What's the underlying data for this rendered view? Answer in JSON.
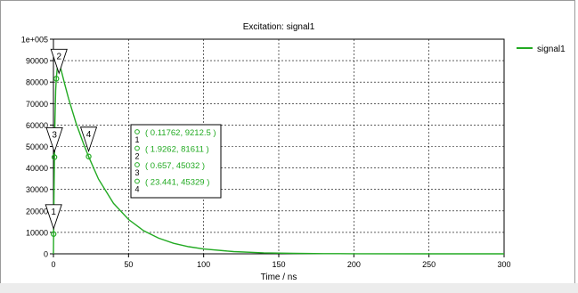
{
  "chart_data": {
    "type": "line",
    "title": "Excitation: signal1",
    "xlabel": "Time / ns",
    "ylabel": "",
    "xlim": [
      0,
      300
    ],
    "ylim": [
      0,
      100000
    ],
    "x_ticks": [
      0,
      50,
      100,
      150,
      200,
      250,
      300
    ],
    "x_tick_labels": [
      "0",
      "50",
      "100",
      "150",
      "200",
      "250",
      "300"
    ],
    "y_ticks": [
      0,
      10000,
      20000,
      30000,
      40000,
      50000,
      60000,
      70000,
      80000,
      90000,
      100000
    ],
    "y_tick_labels": [
      "0",
      "10000",
      "20000",
      "30000",
      "40000",
      "50000",
      "60000",
      "70000",
      "80000",
      "90000",
      "1e+005"
    ],
    "grid": true,
    "legend_placement": "outside-right",
    "series": [
      {
        "name": "signal1",
        "color": "#22aa22",
        "x": [
          0,
          0.1176,
          0.3,
          0.657,
          1.0,
          1.5,
          1.9262,
          3,
          5,
          7.5,
          10,
          15,
          20,
          23.441,
          30,
          40,
          50,
          60,
          70,
          80,
          90,
          100,
          120,
          140,
          160,
          180,
          200,
          250,
          300
        ],
        "y": [
          0,
          9212.5,
          22000,
          45032,
          62000,
          76000,
          81611,
          90000,
          86000,
          79000,
          72500,
          61000,
          51400,
          45329,
          34800,
          23500,
          16000,
          10800,
          7300,
          4900,
          3300,
          2250,
          1030,
          470,
          210,
          95,
          45,
          5,
          0
        ]
      }
    ],
    "markers": [
      {
        "id": "1",
        "x": 0.11762,
        "y": 9212.5,
        "label": "( 0.11762, 9212.5 )"
      },
      {
        "id": "2",
        "x": 1.9262,
        "y": 81611,
        "label": "( 1.9262, 81611 )"
      },
      {
        "id": "3",
        "x": 0.657,
        "y": 45032,
        "label": "( 0.657, 45032 )"
      },
      {
        "id": "4",
        "x": 23.441,
        "y": 45329,
        "label": "( 23.441, 45329 )"
      }
    ]
  },
  "colors": {
    "series": "#22aa22",
    "grid": "#000000",
    "frame": "#aaaaaa"
  }
}
